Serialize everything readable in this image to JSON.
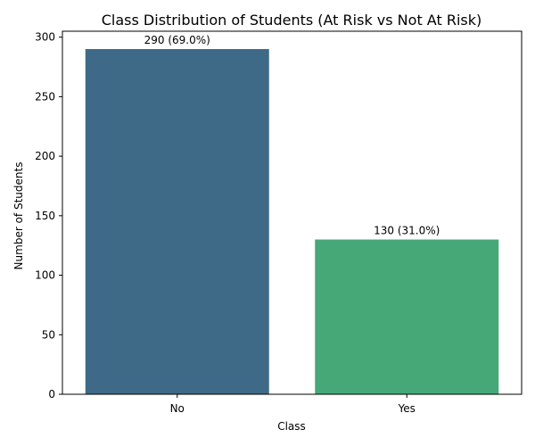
{
  "chart_data": {
    "type": "bar",
    "title": "Class Distribution of Students (At Risk vs Not At Risk)",
    "xlabel": "Class",
    "ylabel": "Number of Students",
    "categories": [
      "No",
      "Yes"
    ],
    "values": [
      290,
      130
    ],
    "data_labels": [
      "290 (69.0%)",
      "130 (31.0%)"
    ],
    "colors": [
      "#3e6a87",
      "#46a877"
    ],
    "ylim": [
      0,
      305
    ],
    "yticks": [
      0,
      50,
      100,
      150,
      200,
      250,
      300
    ],
    "grid": false,
    "legend": "none"
  }
}
